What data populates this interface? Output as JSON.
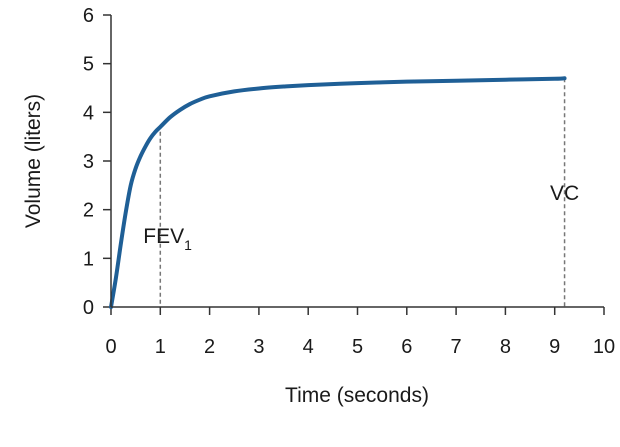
{
  "chart_data": {
    "type": "line",
    "xlabel": "Time (seconds)",
    "ylabel": "Volume (liters)",
    "xlim": [
      0,
      10
    ],
    "ylim": [
      0,
      6
    ],
    "x_ticks": [
      "0",
      "1",
      "2",
      "3",
      "4",
      "5",
      "6",
      "7",
      "8",
      "9",
      "10"
    ],
    "y_ticks": [
      "0",
      "1",
      "2",
      "3",
      "4",
      "5",
      "6"
    ],
    "grid": false,
    "series": [
      {
        "color": "#1f5f96",
        "x": [
          0,
          0.1,
          0.2,
          0.3,
          0.4,
          0.5,
          0.6,
          0.7,
          0.8,
          0.9,
          1.0,
          1.2,
          1.4,
          1.6,
          1.8,
          2.0,
          2.5,
          3.0,
          3.5,
          4.0,
          5.0,
          6.0,
          7.0,
          8.0,
          9.0,
          9.2
        ],
        "y": [
          0,
          0.6,
          1.3,
          1.95,
          2.5,
          2.85,
          3.1,
          3.3,
          3.47,
          3.6,
          3.7,
          3.9,
          4.05,
          4.17,
          4.26,
          4.33,
          4.43,
          4.49,
          4.53,
          4.56,
          4.6,
          4.63,
          4.65,
          4.67,
          4.69,
          4.7
        ]
      }
    ],
    "annotations": [
      {
        "text_main": "FEV",
        "text_sub": "1",
        "x": 1.0,
        "y": 3.6
      },
      {
        "text_main": "VC",
        "x": 9.2,
        "y": 4.7
      }
    ]
  }
}
